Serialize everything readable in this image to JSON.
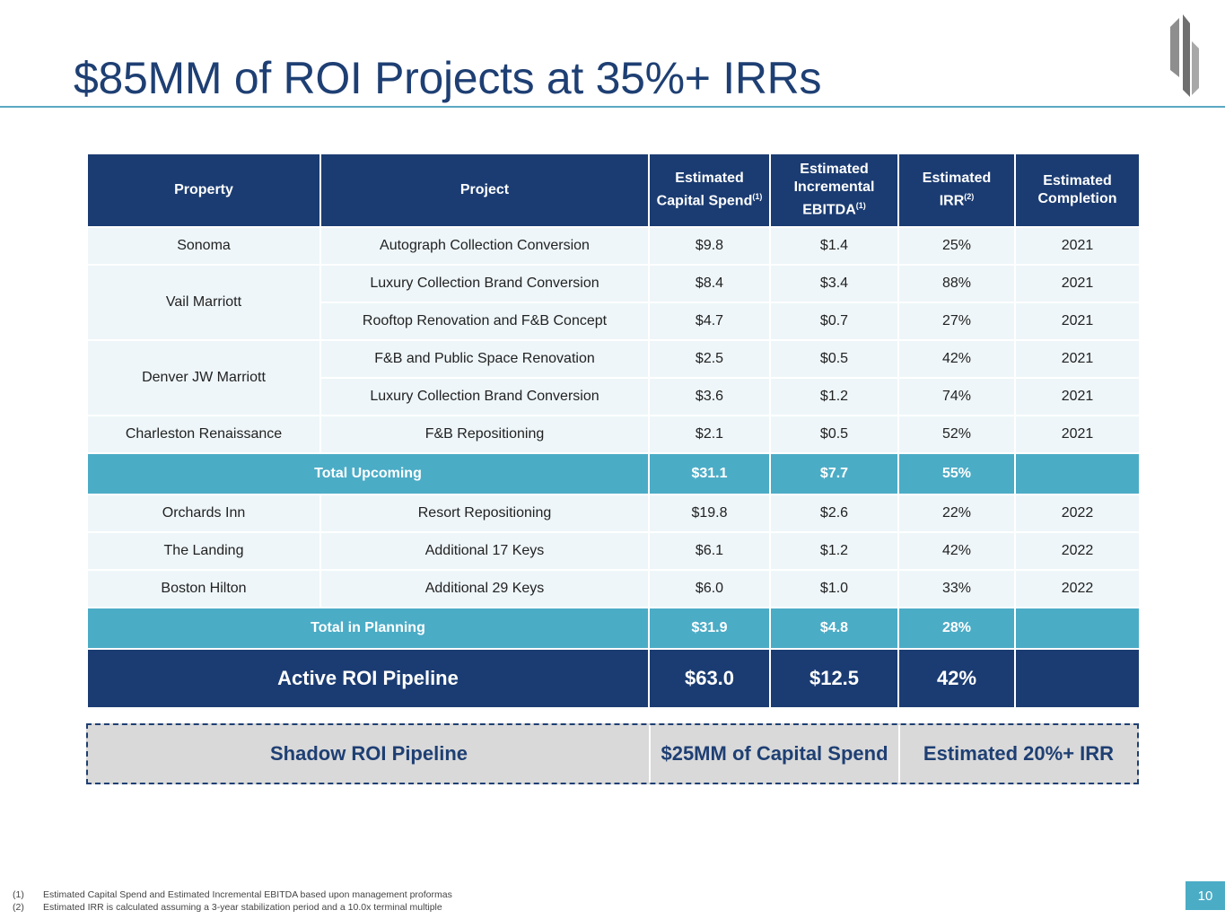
{
  "title": "$85MM of ROI Projects at 35%+ IRRs",
  "logo": {
    "icon": "brand-logo-icon"
  },
  "table": {
    "headers": {
      "property": "Property",
      "project": "Project",
      "capital_line1": "Estimated",
      "capital_line2": "Capital Spend",
      "capital_sup": "(1)",
      "ebitda_line1": "Estimated",
      "ebitda_line2": "Incremental",
      "ebitda_line3": "EBITDA",
      "ebitda_sup": "(1)",
      "irr_line1": "Estimated",
      "irr_line2": "IRR",
      "irr_sup": "(2)",
      "completion_line1": "Estimated",
      "completion_line2": "Completion"
    },
    "upcoming": [
      {
        "property": "Sonoma",
        "project": "Autograph Collection Conversion",
        "capital": "$9.8",
        "ebitda": "$1.4",
        "irr": "25%",
        "completion": "2021"
      },
      {
        "property": "Vail Marriott",
        "project": "Luxury Collection Brand Conversion",
        "capital": "$8.4",
        "ebitda": "$3.4",
        "irr": "88%",
        "completion": "2021"
      },
      {
        "project": "Rooftop Renovation and F&B Concept",
        "capital": "$4.7",
        "ebitda": "$0.7",
        "irr": "27%",
        "completion": "2021"
      },
      {
        "property": "Denver JW Marriott",
        "project": "F&B and Public Space Renovation",
        "capital": "$2.5",
        "ebitda": "$0.5",
        "irr": "42%",
        "completion": "2021"
      },
      {
        "project": "Luxury Collection Brand Conversion",
        "capital": "$3.6",
        "ebitda": "$1.2",
        "irr": "74%",
        "completion": "2021"
      },
      {
        "property": "Charleston Renaissance",
        "project": "F&B Repositioning",
        "capital": "$2.1",
        "ebitda": "$0.5",
        "irr": "52%",
        "completion": "2021"
      }
    ],
    "total_upcoming": {
      "label": "Total Upcoming",
      "capital": "$31.1",
      "ebitda": "$7.7",
      "irr": "55%"
    },
    "planning": [
      {
        "property": "Orchards Inn",
        "project": "Resort Repositioning",
        "capital": "$19.8",
        "ebitda": "$2.6",
        "irr": "22%",
        "completion": "2022"
      },
      {
        "property": "The Landing",
        "project": "Additional 17 Keys",
        "capital": "$6.1",
        "ebitda": "$1.2",
        "irr": "42%",
        "completion": "2022"
      },
      {
        "property": "Boston Hilton",
        "project": "Additional 29 Keys",
        "capital": "$6.0",
        "ebitda": "$1.0",
        "irr": "33%",
        "completion": "2022"
      }
    ],
    "total_planning": {
      "label": "Total in Planning",
      "capital": "$31.9",
      "ebitda": "$4.8",
      "irr": "28%"
    },
    "active_pipeline": {
      "label": "Active ROI Pipeline",
      "capital": "$63.0",
      "ebitda": "$12.5",
      "irr": "42%"
    }
  },
  "shadow": {
    "label": "Shadow ROI Pipeline",
    "capital": "$25MM of Capital Spend",
    "irr": "Estimated 20%+ IRR"
  },
  "footnotes": [
    {
      "num": "(1)",
      "text": "Estimated Capital Spend and Estimated Incremental EBITDA based upon management proformas"
    },
    {
      "num": "(2)",
      "text": "Estimated IRR is calculated assuming a 3-year stabilization period and a 10.0x terminal multiple"
    }
  ],
  "page_number": "10",
  "colors": {
    "navy": "#1b3c72",
    "teal": "#4bacc6",
    "row_bg": "#eef6f9",
    "shadow_bg": "#d9d9d9"
  }
}
